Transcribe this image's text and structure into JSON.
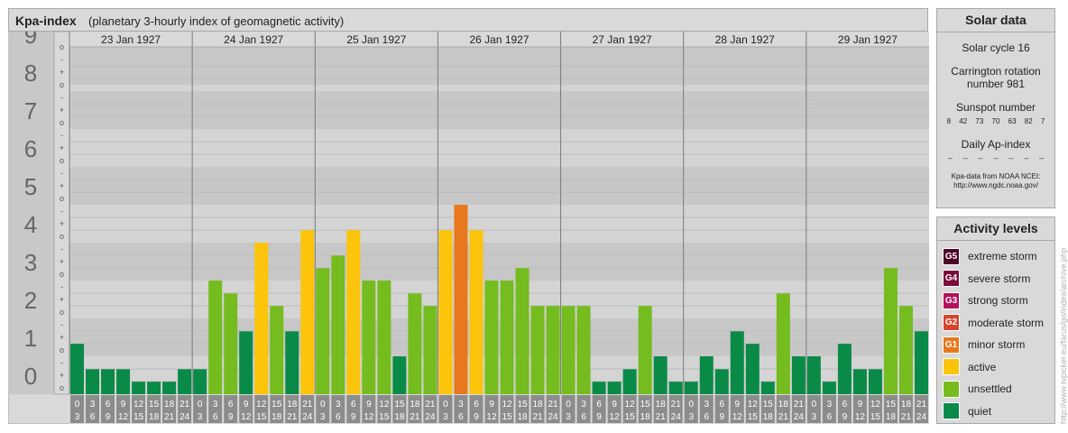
{
  "header": {
    "title": "Kpa-index",
    "subtitle": "(planetary 3-hourly index of geomagnetic activity)"
  },
  "chart_data": {
    "type": "bar",
    "days": [
      "23 Jan 1927",
      "24 Jan 1927",
      "25 Jan 1927",
      "26 Jan 1927",
      "27 Jan 1927",
      "28 Jan 1927",
      "29 Jan 1927"
    ],
    "interval_start_labels": [
      "0",
      "3",
      "6",
      "9",
      "12",
      "15",
      "18",
      "21"
    ],
    "interval_end_labels": [
      "3",
      "6",
      "9",
      "12",
      "15",
      "18",
      "21",
      "24"
    ],
    "y_labels": [
      "0",
      "1",
      "2",
      "3",
      "4",
      "5",
      "6",
      "7",
      "8",
      "9"
    ],
    "sub_labels": [
      "o",
      "+",
      "-"
    ],
    "ylim": [
      0,
      9.33
    ],
    "values": [
      1.0,
      0.33,
      0.33,
      0.33,
      0.0,
      0.0,
      0.0,
      0.33,
      0.33,
      2.67,
      2.33,
      1.33,
      3.67,
      2.0,
      1.33,
      4.0,
      3.0,
      3.33,
      4.0,
      2.67,
      2.67,
      0.67,
      2.33,
      2.0,
      4.0,
      4.67,
      4.0,
      2.67,
      2.67,
      3.0,
      2.0,
      2.0,
      2.0,
      2.0,
      0.0,
      0.0,
      0.33,
      2.0,
      0.67,
      0.0,
      0.0,
      0.67,
      0.33,
      1.33,
      1.0,
      0.0,
      2.33,
      0.67,
      0.67,
      0.0,
      1.0,
      0.33,
      0.33,
      3.0,
      2.0,
      1.33
    ],
    "level_colors": {
      "quiet": "#0a8a47",
      "unsettled": "#75bc1f",
      "active": "#fcc40a",
      "minor_storm": "#e8781d",
      "moderate_storm": "#d8452c",
      "strong_storm": "#b5125c",
      "severe_storm": "#7d0c3c",
      "extreme_storm": "#4f0529"
    }
  },
  "solar_data": {
    "heading": "Solar data",
    "solar_cycle": "Solar cycle 16",
    "carrington_line1": "Carrington rotation",
    "carrington_line2": "number 981",
    "sunspot_heading": "Sunspot number",
    "sunspot_values": [
      "8",
      "42",
      "73",
      "70",
      "63",
      "82",
      "7"
    ],
    "ap_heading": "Daily Ap-index",
    "ap_values": [
      "--",
      "--",
      "--",
      "--",
      "--",
      "--",
      "--"
    ],
    "source_line1": "Kpa-data from NOAA NCEI:",
    "source_line2": "http://www.ngdc.noaa.gov/"
  },
  "activity_levels": {
    "heading": "Activity levels",
    "items": [
      {
        "badge": "G5",
        "label": "extreme storm",
        "color": "#4f0529"
      },
      {
        "badge": "G4",
        "label": "severe storm",
        "color": "#7d0c3c"
      },
      {
        "badge": "G3",
        "label": "strong storm",
        "color": "#b5125c"
      },
      {
        "badge": "G2",
        "label": "moderate storm",
        "color": "#d8452c"
      },
      {
        "badge": "G1",
        "label": "minor storm",
        "color": "#e8781d"
      },
      {
        "badge": "",
        "label": "active",
        "color": "#fcc40a"
      },
      {
        "badge": "",
        "label": "unsettled",
        "color": "#75bc1f"
      },
      {
        "badge": "",
        "label": "quiet",
        "color": "#0a8a47"
      }
    ]
  },
  "credit": "http://www.tvpicker.eu/farus/go/index/archive.php"
}
